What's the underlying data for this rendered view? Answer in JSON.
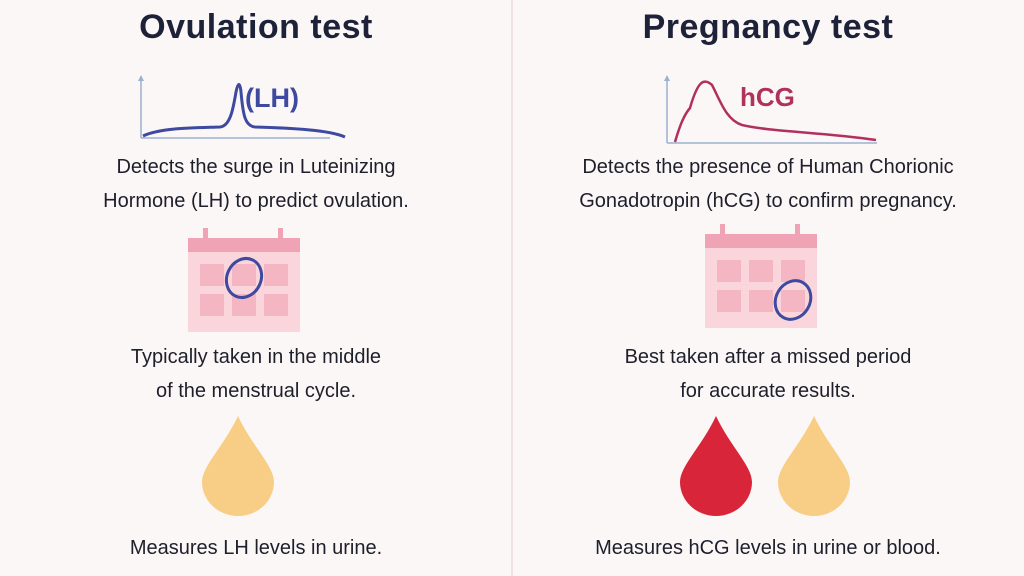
{
  "ovulation": {
    "title": "Ovulation test",
    "graph_label": "(LH)",
    "description": [
      "Detects the surge in Luteinizing",
      "Hormone (LH) to predict ovulation."
    ],
    "timing": [
      "Typically taken in the middle",
      "of the menstrual cycle."
    ],
    "sample": "Measures LH levels in urine.",
    "curve_color": "#3d4aa0",
    "drops": [
      "urine"
    ]
  },
  "pregnancy": {
    "title": "Pregnancy test",
    "graph_label": "hCG",
    "description": [
      "Detects the presence of Human Chorionic",
      "Gonadotropin (hCG) to confirm pregnancy."
    ],
    "timing": [
      "Best taken after a missed period",
      "for accurate results."
    ],
    "sample": "Measures hCG levels in urine or blood.",
    "curve_color": "#b0305e",
    "drops": [
      "blood",
      "urine"
    ]
  },
  "colors": {
    "calendar": "#f6c6d0",
    "calendar_header": "#f0a3b4",
    "circle": "#3d4aa0",
    "urine": "#f8cd85",
    "blood": "#d8253a"
  }
}
